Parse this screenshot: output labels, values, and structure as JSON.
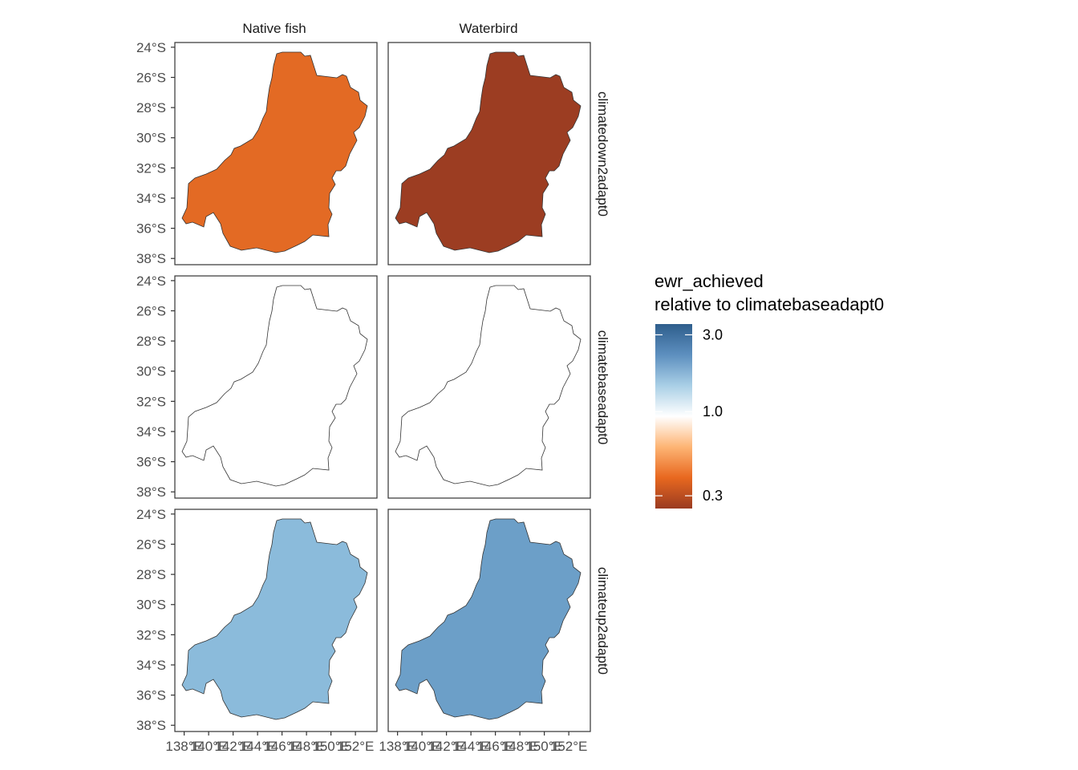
{
  "columns": [
    "Native fish",
    "Waterbird"
  ],
  "rows": [
    "climatedown2adapt0",
    "climatebaseadapt0",
    "climateup2adapt0"
  ],
  "fills": [
    [
      "#e36a24",
      "#9c3d22"
    ],
    [
      "#ffffff",
      "#ffffff"
    ],
    [
      "#8bbbdb",
      "#6c9fc8"
    ]
  ],
  "outline_color": "#333333",
  "y_ticks": [
    "24°S",
    "26°S",
    "28°S",
    "30°S",
    "32°S",
    "34°S",
    "36°S",
    "38°S"
  ],
  "x_ticks": [
    "138°E",
    "140°E",
    "142°E",
    "144°E",
    "146°E",
    "148°E",
    "150°E",
    "152°E"
  ],
  "legend": {
    "title_line1": "ewr_achieved",
    "title_line2": "relative to climatebaseadapt0",
    "labels": [
      "3.0",
      "1.0",
      "0.3"
    ],
    "gradient": [
      "#2e5e8c",
      "#5d8fbf",
      "#a9cfe6",
      "#ffffff",
      "#fdb474",
      "#e8681f",
      "#9a3b21"
    ]
  },
  "chart_data": {
    "type": "map",
    "facet_columns": [
      "Native fish",
      "Waterbird"
    ],
    "facet_rows": [
      "climatedown2adapt0",
      "climatebaseadapt0",
      "climateup2adapt0"
    ],
    "values": [
      {
        "row": "climatedown2adapt0",
        "column": "Native fish",
        "ewr_achieved_relative": 0.45
      },
      {
        "row": "climatedown2adapt0",
        "column": "Waterbird",
        "ewr_achieved_relative": 0.3
      },
      {
        "row": "climatebaseadapt0",
        "column": "Native fish",
        "ewr_achieved_relative": 1.0
      },
      {
        "row": "climatebaseadapt0",
        "column": "Waterbird",
        "ewr_achieved_relative": 1.0
      },
      {
        "row": "climateup2adapt0",
        "column": "Native fish",
        "ewr_achieved_relative": 1.6
      },
      {
        "row": "climateup2adapt0",
        "column": "Waterbird",
        "ewr_achieved_relative": 2.2
      }
    ],
    "xlim": [
      137.5,
      153.5
    ],
    "ylim": [
      -38.2,
      -23.9
    ],
    "scale": "log",
    "grid": false,
    "legend_position": "right"
  }
}
